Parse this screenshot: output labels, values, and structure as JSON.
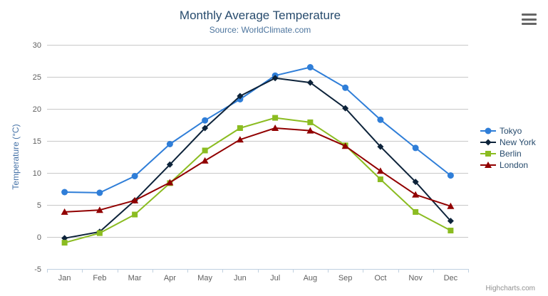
{
  "header": {
    "title": "Monthly Average Temperature",
    "subtitle": "Source: WorldClimate.com"
  },
  "credit": "Highcharts.com",
  "menu_icon": "hamburger-icon",
  "chart_data": {
    "type": "line",
    "title": "Monthly Average Temperature",
    "subtitle": "Source: WorldClimate.com",
    "categories": [
      "Jan",
      "Feb",
      "Mar",
      "Apr",
      "May",
      "Jun",
      "Jul",
      "Aug",
      "Sep",
      "Oct",
      "Nov",
      "Dec"
    ],
    "series": [
      {
        "name": "Tokyo",
        "color": "#2f7ed8",
        "marker": "circle",
        "values": [
          7.0,
          6.9,
          9.5,
          14.5,
          18.2,
          21.5,
          25.2,
          26.5,
          23.3,
          18.3,
          13.9,
          9.6
        ]
      },
      {
        "name": "New York",
        "color": "#0d233a",
        "marker": "diamond",
        "values": [
          -0.2,
          0.8,
          5.7,
          11.3,
          17.0,
          22.0,
          24.8,
          24.1,
          20.1,
          14.1,
          8.6,
          2.5
        ]
      },
      {
        "name": "Berlin",
        "color": "#8bbc21",
        "marker": "square",
        "values": [
          -0.9,
          0.6,
          3.5,
          8.4,
          13.5,
          17.0,
          18.6,
          17.9,
          14.3,
          9.0,
          3.9,
          1.0
        ]
      },
      {
        "name": "London",
        "color": "#910000",
        "marker": "triangle",
        "values": [
          3.9,
          4.2,
          5.7,
          8.5,
          11.9,
          15.2,
          17.0,
          16.6,
          14.2,
          10.3,
          6.6,
          4.8
        ]
      }
    ],
    "xlabel": "",
    "ylabel": "Temperature (°C)",
    "ylim": [
      -5,
      30
    ],
    "yticks": [
      -5,
      0,
      5,
      10,
      15,
      20,
      25,
      30
    ],
    "grid": true,
    "legend_position": "right-middle",
    "colors": {
      "grid_line": "#c8c8c8",
      "axis_line": "#c0d0e0",
      "tick_label": "#606060",
      "axis_title": "#4572a7",
      "title": "#274b6d",
      "subtitle": "#4d759e",
      "legend_text": "#274b6d",
      "credits": "#909090"
    }
  }
}
